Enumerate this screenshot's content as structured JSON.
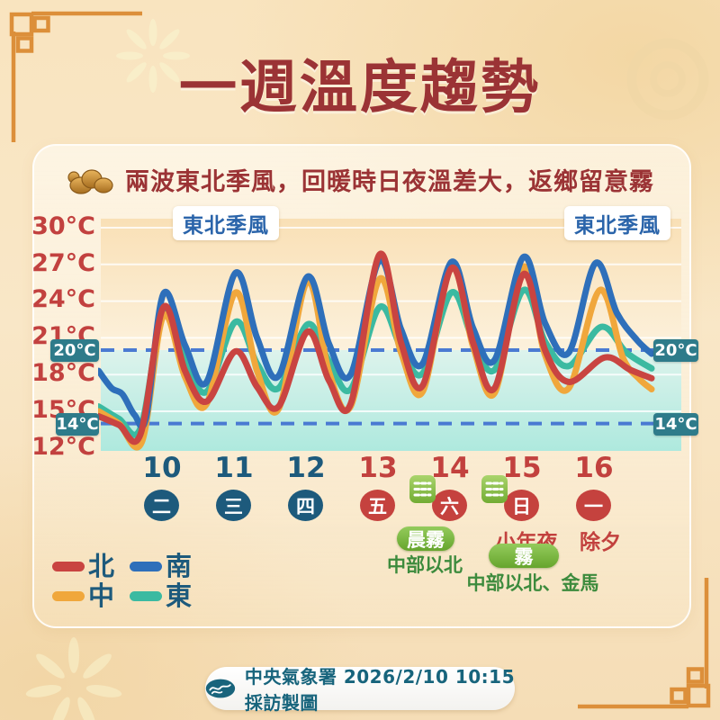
{
  "page": {
    "title": "一週溫度趨勢",
    "subtitle": "兩波東北季風，回暖時日夜溫差大，返鄉留意霧"
  },
  "chart_data": {
    "type": "line",
    "title": "一週溫度趨勢",
    "y_unit": "°C",
    "ylim": [
      12,
      30
    ],
    "ytick_labels": [
      "30°C",
      "27°C",
      "24°C",
      "21°C",
      "18°C",
      "15°C",
      "12°C"
    ],
    "gridline_temps": [
      30,
      27,
      24,
      21,
      18,
      15
    ],
    "thresholds": [
      {
        "value": 20,
        "label": "20°C"
      },
      {
        "value": 14,
        "label": "14°C"
      }
    ],
    "threshold_line_color": "#4a7ad2",
    "monsoon_label_left": "東北季風",
    "monsoon_label_right": "東北季風",
    "x_days": [
      {
        "date": "10",
        "weekday": "二"
      },
      {
        "date": "11",
        "weekday": "三"
      },
      {
        "date": "12",
        "weekday": "四"
      },
      {
        "date": "13",
        "weekday": "五"
      },
      {
        "date": "14",
        "weekday": "六"
      },
      {
        "date": "15",
        "weekday": "日"
      },
      {
        "date": "16",
        "weekday": "一"
      }
    ],
    "series": [
      {
        "name": "東",
        "color": "#3bbaa1",
        "points": [
          [
            9.12,
            15.4
          ],
          [
            9.4,
            14.4
          ],
          [
            9.7,
            13.6
          ],
          [
            10.02,
            23.1
          ],
          [
            10.32,
            19.2
          ],
          [
            10.62,
            16.6
          ],
          [
            11.02,
            22.3
          ],
          [
            11.32,
            18.9
          ],
          [
            11.62,
            16.9
          ],
          [
            12.02,
            22.1
          ],
          [
            12.32,
            19.1
          ],
          [
            12.62,
            16.8
          ],
          [
            13.02,
            23.5
          ],
          [
            13.32,
            20.2
          ],
          [
            13.62,
            18.1
          ],
          [
            14.02,
            24.7
          ],
          [
            14.32,
            20.8
          ],
          [
            14.62,
            18.4
          ],
          [
            15.02,
            24.9
          ],
          [
            15.32,
            20.7
          ],
          [
            15.65,
            18.7
          ],
          [
            16.1,
            21.9
          ],
          [
            16.45,
            19.8
          ],
          [
            16.8,
            18.5
          ]
        ]
      },
      {
        "name": "中",
        "color": "#f0a73c",
        "points": [
          [
            9.12,
            15.0
          ],
          [
            9.4,
            14.0
          ],
          [
            9.72,
            12.5
          ],
          [
            10.02,
            22.8
          ],
          [
            10.32,
            17.8
          ],
          [
            10.62,
            15.6
          ],
          [
            11.02,
            24.7
          ],
          [
            11.32,
            18.3
          ],
          [
            11.62,
            15.2
          ],
          [
            12.02,
            25.6
          ],
          [
            12.32,
            18.2
          ],
          [
            12.62,
            15.4
          ],
          [
            13.02,
            25.8
          ],
          [
            13.32,
            19.8
          ],
          [
            13.62,
            16.6
          ],
          [
            14.02,
            26.8
          ],
          [
            14.32,
            20.3
          ],
          [
            14.62,
            16.5
          ],
          [
            15.02,
            26.8
          ],
          [
            15.32,
            19.6
          ],
          [
            15.65,
            16.9
          ],
          [
            16.08,
            24.9
          ],
          [
            16.4,
            19.4
          ],
          [
            16.62,
            17.7
          ],
          [
            16.8,
            16.8
          ]
        ]
      },
      {
        "name": "南",
        "color": "#2e6fba",
        "points": [
          [
            9.12,
            18.3
          ],
          [
            9.3,
            16.9
          ],
          [
            9.45,
            16.4
          ],
          [
            9.62,
            14.7
          ],
          [
            9.78,
            14.5
          ],
          [
            10.02,
            24.6
          ],
          [
            10.32,
            20.4
          ],
          [
            10.62,
            17.4
          ],
          [
            11.02,
            26.3
          ],
          [
            11.32,
            21.0
          ],
          [
            11.62,
            17.9
          ],
          [
            12.02,
            26.0
          ],
          [
            12.32,
            20.5
          ],
          [
            12.62,
            18.0
          ],
          [
            13.02,
            27.3
          ],
          [
            13.32,
            21.7
          ],
          [
            13.62,
            18.9
          ],
          [
            14.02,
            27.2
          ],
          [
            14.32,
            21.8
          ],
          [
            14.62,
            19.2
          ],
          [
            15.02,
            27.6
          ],
          [
            15.32,
            22.2
          ],
          [
            15.65,
            19.8
          ],
          [
            16.02,
            27.1
          ],
          [
            16.32,
            23.0
          ],
          [
            16.6,
            20.8
          ],
          [
            16.8,
            19.7
          ]
        ]
      },
      {
        "name": "北",
        "color": "#c94441",
        "points": [
          [
            9.12,
            14.6
          ],
          [
            9.4,
            13.9
          ],
          [
            9.7,
            13.1
          ],
          [
            10.02,
            23.5
          ],
          [
            10.32,
            18.3
          ],
          [
            10.62,
            15.8
          ],
          [
            11.02,
            19.9
          ],
          [
            11.32,
            17.0
          ],
          [
            11.62,
            15.4
          ],
          [
            12.02,
            21.5
          ],
          [
            12.32,
            17.5
          ],
          [
            12.62,
            15.6
          ],
          [
            13.02,
            27.8
          ],
          [
            13.32,
            20.6
          ],
          [
            13.62,
            17.1
          ],
          [
            14.02,
            26.7
          ],
          [
            14.32,
            20.6
          ],
          [
            14.62,
            16.9
          ],
          [
            15.02,
            26.2
          ],
          [
            15.32,
            20.0
          ],
          [
            15.65,
            17.4
          ],
          [
            16.15,
            19.4
          ],
          [
            16.5,
            18.4
          ],
          [
            16.8,
            17.7
          ]
        ]
      }
    ],
    "annotations": {
      "day14_fog_badge": "晨霧",
      "day14_fog_area": "中部以北",
      "day15_holiday": "小年夜",
      "day15_fog_badge": "霧",
      "day15_fog_area": "中部以北、金馬",
      "day16_holiday": "除夕"
    }
  },
  "legend": {
    "items": [
      {
        "label": "北",
        "color": "#c94441"
      },
      {
        "label": "南",
        "color": "#2e6fba"
      },
      {
        "label": "中",
        "color": "#f0a73c"
      },
      {
        "label": "東",
        "color": "#3bbaa1"
      }
    ]
  },
  "footer": {
    "text": "中央氣象署 2026/2/10 10:15 採訪製圖"
  }
}
